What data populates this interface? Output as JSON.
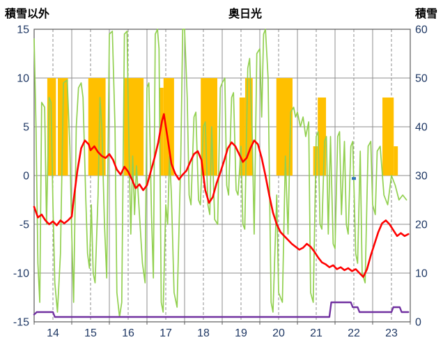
{
  "header": {
    "left_axis_title": "積雪以外",
    "title": "奥日光",
    "right_axis_title": "積雪"
  },
  "chart_data": {
    "type": "mixed",
    "title": "奥日光",
    "x_min": 14,
    "x_max": 24,
    "x_tick_labels": [
      "14",
      "15",
      "16",
      "17",
      "18",
      "19",
      "20",
      "21",
      "22",
      "23"
    ],
    "left_axis": {
      "title": "積雪以外",
      "min": -15,
      "max": 15,
      "ticks": [
        15,
        10,
        5,
        0,
        -5,
        -10,
        -15
      ]
    },
    "right_axis": {
      "title": "積雪",
      "min": 0,
      "max": 60,
      "ticks": [
        60,
        50,
        40,
        30,
        20,
        10,
        0
      ]
    },
    "grid": {
      "horizontal": true,
      "vertical_solid_at_day": true,
      "vertical_dashed_at_half_day": true,
      "legend": "none"
    },
    "colors": {
      "grid": "#8c8c8c",
      "border": "#595959",
      "axis_text": "#1F3864",
      "title_text": "#000000",
      "orange_bars": "#FFC000",
      "green_line": "#92D050",
      "red_line": "#FF0000",
      "purple_line": "#7030A0",
      "blue_mark": "#2E75B6"
    },
    "series": [
      {
        "name": "orange-bars",
        "kind": "bars",
        "axis": "left",
        "color": "#FFC000",
        "segments": [
          [
            14.35,
            14.58,
            10
          ],
          [
            14.63,
            14.9,
            10
          ],
          [
            15.44,
            15.9,
            10
          ],
          [
            16.39,
            16.91,
            10
          ],
          [
            17.33,
            17.44,
            9
          ],
          [
            17.44,
            17.72,
            10
          ],
          [
            18.43,
            18.87,
            10
          ],
          [
            19.46,
            19.61,
            8
          ],
          [
            19.61,
            19.81,
            10
          ],
          [
            20.44,
            20.87,
            10
          ],
          [
            21.42,
            21.54,
            3
          ],
          [
            21.54,
            21.76,
            8
          ],
          [
            23.26,
            23.56,
            8
          ],
          [
            23.56,
            23.67,
            3
          ]
        ]
      },
      {
        "name": "green-line",
        "kind": "line",
        "axis": "left",
        "color": "#92D050",
        "stroke_width": 1.7,
        "points": [
          [
            14.0,
            14
          ],
          [
            14.05,
            5
          ],
          [
            14.1,
            -9
          ],
          [
            14.15,
            -13
          ],
          [
            14.2,
            7.5
          ],
          [
            14.28,
            7
          ],
          [
            14.33,
            -5
          ],
          [
            14.4,
            8
          ],
          [
            14.45,
            7.5
          ],
          [
            14.5,
            -3
          ],
          [
            14.55,
            -11
          ],
          [
            14.62,
            -14
          ],
          [
            14.7,
            -8
          ],
          [
            14.78,
            9.5
          ],
          [
            14.88,
            9.8
          ],
          [
            14.95,
            3
          ],
          [
            15.0,
            -6
          ],
          [
            15.05,
            -13
          ],
          [
            15.12,
            5
          ],
          [
            15.18,
            9
          ],
          [
            15.25,
            9.5
          ],
          [
            15.3,
            8
          ],
          [
            15.37,
            -2
          ],
          [
            15.42,
            -8
          ],
          [
            15.47,
            -9.5
          ],
          [
            15.52,
            -3
          ],
          [
            15.57,
            -10
          ],
          [
            15.62,
            -11
          ],
          [
            15.7,
            -2
          ],
          [
            15.75,
            8
          ],
          [
            15.8,
            5
          ],
          [
            15.87,
            -5
          ],
          [
            15.93,
            -10.5
          ],
          [
            16.0,
            14.5
          ],
          [
            16.08,
            14.8
          ],
          [
            16.15,
            5
          ],
          [
            16.2,
            -12
          ],
          [
            16.27,
            -14.5
          ],
          [
            16.33,
            -13
          ],
          [
            16.4,
            14.5
          ],
          [
            16.47,
            14.8
          ],
          [
            16.52,
            3
          ],
          [
            16.57,
            -6
          ],
          [
            16.62,
            2
          ],
          [
            16.67,
            -4
          ],
          [
            16.72,
            1
          ],
          [
            16.8,
            -4
          ],
          [
            16.88,
            -9
          ],
          [
            16.95,
            -11
          ],
          [
            17.0,
            9
          ],
          [
            17.05,
            9.5
          ],
          [
            17.12,
            -4
          ],
          [
            17.17,
            -10.5
          ],
          [
            17.22,
            14.5
          ],
          [
            17.28,
            15
          ],
          [
            17.32,
            13
          ],
          [
            17.38,
            -13
          ],
          [
            17.43,
            -14
          ],
          [
            17.5,
            -3
          ],
          [
            17.55,
            -5
          ],
          [
            17.6,
            2
          ],
          [
            17.65,
            -2
          ],
          [
            17.72,
            -12
          ],
          [
            17.8,
            -13.5
          ],
          [
            17.9,
            2
          ],
          [
            17.95,
            15
          ],
          [
            18.0,
            15
          ],
          [
            18.07,
            8
          ],
          [
            18.12,
            -2
          ],
          [
            18.17,
            -3
          ],
          [
            18.25,
            6
          ],
          [
            18.3,
            6.5
          ],
          [
            18.37,
            -2.5
          ],
          [
            18.42,
            -3
          ],
          [
            18.5,
            5
          ],
          [
            18.55,
            5.5
          ],
          [
            18.62,
            -3
          ],
          [
            18.67,
            -4
          ],
          [
            18.72,
            5
          ],
          [
            18.8,
            -4.5
          ],
          [
            18.88,
            -5
          ],
          [
            18.95,
            9
          ],
          [
            19.0,
            9.5
          ],
          [
            19.07,
            10
          ],
          [
            19.12,
            -1
          ],
          [
            19.17,
            -2
          ],
          [
            19.25,
            8
          ],
          [
            19.3,
            8.5
          ],
          [
            19.37,
            -1.5
          ],
          [
            19.42,
            -2
          ],
          [
            19.5,
            3
          ],
          [
            19.55,
            -5
          ],
          [
            19.6,
            -5.5
          ],
          [
            19.68,
            11
          ],
          [
            19.73,
            12
          ],
          [
            19.8,
            4
          ],
          [
            19.85,
            -6
          ],
          [
            19.92,
            12.5
          ],
          [
            20.0,
            13
          ],
          [
            20.05,
            6
          ],
          [
            20.1,
            14.5
          ],
          [
            20.15,
            15
          ],
          [
            20.22,
            10
          ],
          [
            20.3,
            -13
          ],
          [
            20.35,
            -14
          ],
          [
            20.45,
            -2
          ],
          [
            20.5,
            -12
          ],
          [
            20.6,
            -13
          ],
          [
            20.68,
            2
          ],
          [
            20.75,
            -6
          ],
          [
            20.82,
            6.5
          ],
          [
            20.9,
            7
          ],
          [
            20.95,
            6
          ],
          [
            21.0,
            6.5
          ],
          [
            21.08,
            5
          ],
          [
            21.15,
            6
          ],
          [
            21.22,
            4
          ],
          [
            21.3,
            5.5
          ],
          [
            21.35,
            -12
          ],
          [
            21.42,
            -13
          ],
          [
            21.5,
            4
          ],
          [
            21.55,
            4.5
          ],
          [
            21.6,
            -5
          ],
          [
            21.65,
            -5.5
          ],
          [
            21.72,
            3.5
          ],
          [
            21.77,
            4
          ],
          [
            21.82,
            -6
          ],
          [
            21.88,
            4
          ],
          [
            21.95,
            -7
          ],
          [
            22.0,
            -7.5
          ],
          [
            22.07,
            4
          ],
          [
            22.12,
            4.5
          ],
          [
            22.17,
            -4
          ],
          [
            22.25,
            3.5
          ],
          [
            22.3,
            -5
          ],
          [
            22.35,
            -6
          ],
          [
            22.42,
            3
          ],
          [
            22.47,
            3.5
          ],
          [
            22.55,
            -8
          ],
          [
            22.6,
            -9
          ],
          [
            22.67,
            2.5
          ],
          [
            22.72,
            -10
          ],
          [
            22.8,
            -11
          ],
          [
            22.88,
            3
          ],
          [
            22.95,
            3.5
          ],
          [
            23.0,
            -3
          ],
          [
            23.07,
            -4
          ],
          [
            23.12,
            2.5
          ],
          [
            23.2,
            3
          ],
          [
            23.3,
            -2
          ],
          [
            23.4,
            -3
          ],
          [
            23.5,
            0
          ],
          [
            23.6,
            -1
          ],
          [
            23.7,
            -2.5
          ],
          [
            23.8,
            -2
          ],
          [
            23.9,
            -2.5
          ]
        ]
      },
      {
        "name": "red-line",
        "kind": "line",
        "axis": "left",
        "color": "#FF0000",
        "stroke_width": 2.6,
        "points": [
          [
            14.0,
            -3.2
          ],
          [
            14.1,
            -4.3
          ],
          [
            14.2,
            -4.0
          ],
          [
            14.3,
            -4.6
          ],
          [
            14.4,
            -5.0
          ],
          [
            14.5,
            -4.7
          ],
          [
            14.6,
            -5.1
          ],
          [
            14.7,
            -4.6
          ],
          [
            14.8,
            -4.9
          ],
          [
            14.9,
            -4.6
          ],
          [
            15.0,
            -4.2
          ],
          [
            15.05,
            -2.5
          ],
          [
            15.15,
            0.5
          ],
          [
            15.25,
            2.8
          ],
          [
            15.35,
            3.6
          ],
          [
            15.45,
            3.2
          ],
          [
            15.5,
            2.6
          ],
          [
            15.6,
            3.0
          ],
          [
            15.7,
            2.4
          ],
          [
            15.8,
            2.0
          ],
          [
            15.9,
            1.8
          ],
          [
            16.0,
            2.2
          ],
          [
            16.1,
            1.6
          ],
          [
            16.2,
            0.6
          ],
          [
            16.3,
            0.1
          ],
          [
            16.4,
            0.9
          ],
          [
            16.5,
            0.4
          ],
          [
            16.6,
            -0.4
          ],
          [
            16.7,
            -1.3
          ],
          [
            16.8,
            -0.9
          ],
          [
            16.9,
            -1.5
          ],
          [
            17.0,
            -1.0
          ],
          [
            17.1,
            0.4
          ],
          [
            17.2,
            1.8
          ],
          [
            17.3,
            3.4
          ],
          [
            17.4,
            5.6
          ],
          [
            17.45,
            6.3
          ],
          [
            17.55,
            3.8
          ],
          [
            17.65,
            1.2
          ],
          [
            17.75,
            0.2
          ],
          [
            17.85,
            -0.4
          ],
          [
            17.95,
            0.1
          ],
          [
            18.05,
            0.5
          ],
          [
            18.15,
            1.4
          ],
          [
            18.25,
            2.2
          ],
          [
            18.35,
            2.5
          ],
          [
            18.45,
            1.6
          ],
          [
            18.55,
            -1.5
          ],
          [
            18.65,
            -2.8
          ],
          [
            18.75,
            -2.2
          ],
          [
            18.85,
            -0.8
          ],
          [
            18.95,
            0.3
          ],
          [
            19.05,
            1.5
          ],
          [
            19.15,
            2.8
          ],
          [
            19.25,
            3.4
          ],
          [
            19.35,
            3.0
          ],
          [
            19.45,
            2.2
          ],
          [
            19.55,
            1.4
          ],
          [
            19.65,
            1.8
          ],
          [
            19.75,
            2.8
          ],
          [
            19.85,
            3.6
          ],
          [
            19.95,
            3.2
          ],
          [
            20.05,
            1.8
          ],
          [
            20.15,
            0.0
          ],
          [
            20.25,
            -2.0
          ],
          [
            20.35,
            -3.8
          ],
          [
            20.45,
            -5.0
          ],
          [
            20.55,
            -5.8
          ],
          [
            20.65,
            -6.2
          ],
          [
            20.75,
            -6.6
          ],
          [
            20.85,
            -7.0
          ],
          [
            20.95,
            -7.3
          ],
          [
            21.05,
            -7.6
          ],
          [
            21.15,
            -7.4
          ],
          [
            21.25,
            -7.0
          ],
          [
            21.35,
            -7.3
          ],
          [
            21.45,
            -7.8
          ],
          [
            21.55,
            -8.4
          ],
          [
            21.65,
            -8.9
          ],
          [
            21.75,
            -9.1
          ],
          [
            21.85,
            -9.4
          ],
          [
            21.95,
            -9.2
          ],
          [
            22.05,
            -9.6
          ],
          [
            22.15,
            -9.4
          ],
          [
            22.25,
            -9.7
          ],
          [
            22.35,
            -9.5
          ],
          [
            22.45,
            -9.8
          ],
          [
            22.55,
            -9.6
          ],
          [
            22.65,
            -10.0
          ],
          [
            22.75,
            -10.4
          ],
          [
            22.85,
            -9.6
          ],
          [
            22.95,
            -8.2
          ],
          [
            23.05,
            -7.0
          ],
          [
            23.15,
            -5.8
          ],
          [
            23.25,
            -4.9
          ],
          [
            23.35,
            -4.6
          ],
          [
            23.45,
            -5.0
          ],
          [
            23.55,
            -5.6
          ],
          [
            23.65,
            -6.2
          ],
          [
            23.75,
            -5.9
          ],
          [
            23.85,
            -6.2
          ],
          [
            23.95,
            -6.0
          ]
        ]
      },
      {
        "name": "snow-depth-purple",
        "kind": "line",
        "axis": "right",
        "color": "#7030A0",
        "stroke_width": 2.4,
        "points": [
          [
            14.0,
            1.5
          ],
          [
            14.07,
            2
          ],
          [
            14.5,
            2
          ],
          [
            14.55,
            1
          ],
          [
            21.85,
            1
          ],
          [
            21.9,
            4
          ],
          [
            22.42,
            4
          ],
          [
            22.47,
            3
          ],
          [
            22.6,
            3
          ],
          [
            22.65,
            2
          ],
          [
            23.5,
            2
          ],
          [
            23.55,
            3
          ],
          [
            23.72,
            3
          ],
          [
            23.77,
            2
          ],
          [
            23.95,
            2
          ]
        ]
      },
      {
        "name": "blue-mark",
        "kind": "mark",
        "axis": "left",
        "color": "#2E75B6",
        "points": [
          [
            22.5,
            -0.3
          ]
        ]
      }
    ]
  }
}
